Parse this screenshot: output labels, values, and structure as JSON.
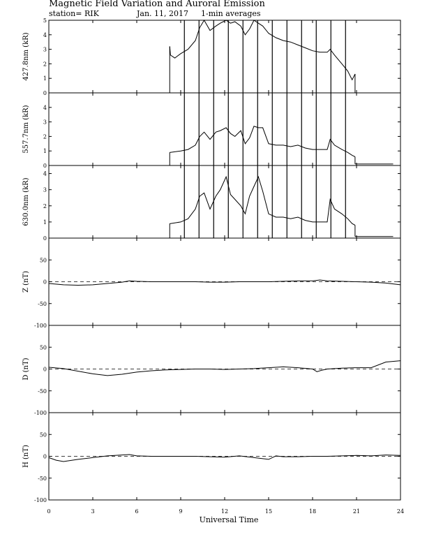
{
  "header": {
    "title": "Magnetic Field Variation and Auroral Emission",
    "station": "station= RIK",
    "date": "Jan. 11, 2017",
    "averaging": "1-min averages"
  },
  "chart_data": {
    "type": "line",
    "xlabel": "Universal Time",
    "xlim": [
      0,
      24
    ],
    "xticks": [
      0,
      3,
      6,
      9,
      12,
      15,
      18,
      21,
      24
    ],
    "grid": false,
    "panels": [
      {
        "id": "p4278",
        "ylabel": "427.8nm (kR)",
        "ylim": [
          0,
          5
        ],
        "yticks": [
          0,
          1,
          2,
          3,
          4,
          5
        ],
        "series": [
          {
            "x": [
              8.25,
              8.3,
              8.6,
              9.0,
              9.5,
              10.0,
              10.3,
              10.6,
              11.0,
              11.4,
              11.7,
              12.1,
              12.4,
              12.7,
              13.1,
              13.4,
              13.7,
              14.0,
              14.3,
              14.6,
              15.0,
              15.5,
              16.0,
              16.5,
              17.0,
              17.5,
              18.0,
              18.5,
              19.0,
              19.2,
              19.5,
              20.0,
              20.4,
              20.7,
              20.9
            ],
            "y": [
              3.2,
              2.6,
              2.4,
              2.7,
              3.0,
              3.6,
              4.5,
              5.0,
              4.3,
              4.6,
              4.8,
              5.0,
              4.8,
              4.9,
              4.6,
              4.0,
              4.4,
              5.0,
              4.8,
              4.6,
              4.1,
              3.8,
              3.6,
              3.5,
              3.3,
              3.1,
              2.9,
              2.8,
              2.8,
              3.0,
              2.6,
              2.0,
              1.5,
              0.9,
              1.3
            ]
          }
        ],
        "baseline_before": 0,
        "baseline_after": 0,
        "gaps": [
          9.25,
          10.25,
          11.25,
          12.25,
          13.25,
          14.25,
          15.25,
          16.25,
          17.25,
          18.25,
          19.25,
          20.25
        ]
      },
      {
        "id": "p5577",
        "ylabel": "557.7nm (kR)",
        "ylim": [
          0,
          5
        ],
        "yticks": [
          0,
          1,
          2,
          3,
          4
        ],
        "series": [
          {
            "x": [
              8.25,
              8.3,
              9.0,
              9.5,
              10.0,
              10.3,
              10.6,
              11.0,
              11.4,
              11.7,
              12.1,
              12.4,
              12.7,
              13.1,
              13.4,
              13.7,
              14.0,
              14.3,
              14.6,
              15.0,
              15.5,
              16.0,
              16.5,
              17.0,
              17.5,
              18.0,
              18.5,
              19.0,
              19.2,
              19.5,
              20.0,
              20.4,
              20.7,
              20.9
            ],
            "y": [
              0.9,
              0.9,
              1.0,
              1.1,
              1.4,
              2.0,
              2.3,
              1.8,
              2.3,
              2.4,
              2.6,
              2.2,
              2.0,
              2.4,
              1.5,
              1.9,
              2.7,
              2.6,
              2.6,
              1.5,
              1.4,
              1.4,
              1.3,
              1.4,
              1.2,
              1.1,
              1.1,
              1.1,
              1.8,
              1.4,
              1.1,
              0.9,
              0.7,
              0.6
            ]
          }
        ],
        "baseline_before": 0,
        "baseline_after": 0.1,
        "gaps": [
          9.25,
          10.25,
          11.25,
          12.25,
          13.25,
          14.25,
          15.25,
          16.25,
          17.25,
          18.25,
          19.25,
          20.25
        ]
      },
      {
        "id": "p6300",
        "ylabel": "630.0nm (kR)",
        "ylim": [
          0,
          4.5
        ],
        "yticks": [
          0,
          1,
          2,
          3,
          4
        ],
        "series": [
          {
            "x": [
              8.25,
              8.3,
              9.0,
              9.5,
              10.0,
              10.3,
              10.6,
              11.0,
              11.4,
              11.7,
              12.1,
              12.4,
              12.7,
              13.1,
              13.4,
              13.7,
              14.0,
              14.3,
              14.6,
              15.0,
              15.5,
              16.0,
              16.5,
              17.0,
              17.5,
              18.0,
              18.5,
              19.0,
              19.2,
              19.5,
              20.0,
              20.4,
              20.7,
              20.9
            ],
            "y": [
              0.9,
              0.9,
              1.0,
              1.2,
              1.8,
              2.6,
              2.8,
              1.8,
              2.6,
              3.0,
              3.8,
              2.7,
              2.4,
              2.0,
              1.5,
              2.6,
              3.2,
              3.8,
              2.9,
              1.5,
              1.3,
              1.3,
              1.2,
              1.3,
              1.1,
              1.0,
              1.0,
              1.0,
              2.4,
              1.8,
              1.5,
              1.2,
              0.9,
              0.8
            ]
          }
        ],
        "baseline_before": 0,
        "baseline_after": 0.1,
        "gaps": [
          9.25,
          10.25,
          11.25,
          12.25,
          13.25,
          14.25,
          15.25,
          16.25,
          17.25,
          18.25,
          19.25,
          20.25
        ]
      },
      {
        "id": "pZ",
        "ylabel": "Z (nT)",
        "ylim": [
          -100,
          100
        ],
        "yticks": [
          -100,
          -50,
          0,
          50
        ],
        "dashed_zero": true,
        "series": [
          {
            "x": [
              0,
              1,
              2,
              3,
              4,
              5,
              5.5,
              6,
              7,
              8,
              9,
              10,
              11,
              12,
              13,
              14,
              15,
              16,
              17,
              18,
              18.5,
              19,
              20,
              21,
              22,
              23,
              24
            ],
            "y": [
              -4,
              -7,
              -8,
              -7,
              -4,
              -1,
              2,
              1,
              0,
              0,
              0,
              0,
              -1,
              -1,
              0,
              0,
              0,
              1,
              2,
              2,
              4,
              2,
              1,
              0,
              -1,
              -3,
              -7
            ]
          }
        ]
      },
      {
        "id": "pD",
        "ylabel": "D (nT)",
        "ylim": [
          -100,
          100
        ],
        "yticks": [
          -100,
          -50,
          0,
          50
        ],
        "dashed_zero": true,
        "series": [
          {
            "x": [
              0,
              1,
              2,
              3,
              4,
              5,
              6,
              7,
              8,
              9,
              10,
              11,
              12,
              13,
              14,
              15,
              16,
              17,
              18,
              18.3,
              18.6,
              19,
              20,
              21,
              22,
              23,
              24
            ],
            "y": [
              4,
              1,
              -5,
              -11,
              -15,
              -12,
              -7,
              -4,
              -2,
              -1,
              0,
              0,
              -1,
              0,
              1,
              3,
              5,
              3,
              0,
              -6,
              -3,
              0,
              2,
              3,
              3,
              16,
              19
            ]
          }
        ]
      },
      {
        "id": "pH",
        "ylabel": "H (nT)",
        "ylim": [
          -100,
          100
        ],
        "yticks": [
          -100,
          -50,
          0,
          50
        ],
        "dashed_zero": true,
        "series": [
          {
            "x": [
              0,
              0.5,
              1,
              2,
              3,
              4,
              5,
              5.5,
              6,
              7,
              8,
              9,
              10,
              11,
              12,
              13,
              14,
              15,
              15.5,
              16,
              17,
              18,
              19,
              20,
              21,
              22,
              23,
              24
            ],
            "y": [
              -3,
              -9,
              -12,
              -7,
              -3,
              1,
              3,
              4,
              1,
              0,
              0,
              0,
              0,
              -1,
              -2,
              1,
              -3,
              -7,
              1,
              -1,
              -1,
              0,
              0,
              1,
              2,
              1,
              3,
              2
            ]
          }
        ]
      }
    ]
  }
}
